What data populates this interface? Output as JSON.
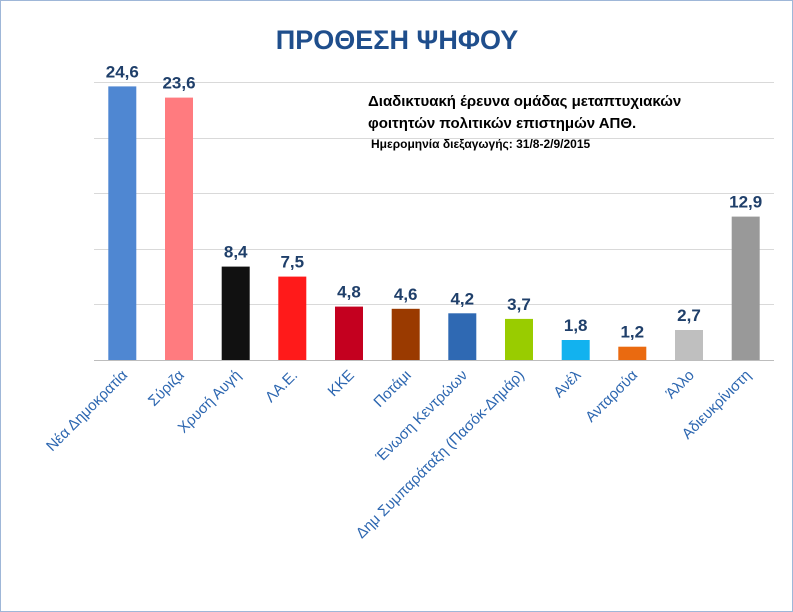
{
  "chart_data": {
    "type": "bar",
    "title": "ΠΡΟΘΕΣΗ ΨΗΦΟΥ",
    "subtitle_lines": [
      "Διαδικτυακή έρευνα ομάδας μεταπτυχιακών",
      "φοιτητών πολιτικών επιστημών ΑΠΘ.",
      "Ημερομηνία διεξαγωγής: 31/8-2/9/2015"
    ],
    "xlabel": "",
    "ylabel": "",
    "ylim": [
      0,
      25
    ],
    "grid": true,
    "categories": [
      "Νέα Δημοκρατία",
      "Σύριζα",
      "Χρυσή Αυγή",
      "ΛΑ.Ε.",
      "ΚΚΕ",
      "Ποτάμι",
      "Ένωση Κεντρώων",
      "Δημ Συμπαράταξη (Πασόκ-Δημάρ)",
      "Ανέλ",
      "Ανταρσύα",
      "Άλλο",
      "Αδιευκρίνιστη"
    ],
    "values": [
      24.6,
      23.6,
      8.4,
      7.5,
      4.8,
      4.6,
      4.2,
      3.7,
      1.8,
      1.2,
      2.7,
      12.9
    ],
    "value_labels": [
      "24,6",
      "23,6",
      "8,4",
      "7,5",
      "4,8",
      "4,6",
      "4,2",
      "3,7",
      "1,8",
      "1,2",
      "2,7",
      "12,9"
    ],
    "colors": [
      "#4f87d2",
      "#ff7b7f",
      "#111111",
      "#ff1a1a",
      "#c4001f",
      "#9a3a00",
      "#2f69b3",
      "#99cc00",
      "#12b2ef",
      "#ea6a10",
      "#bfbfbf",
      "#999999"
    ]
  }
}
